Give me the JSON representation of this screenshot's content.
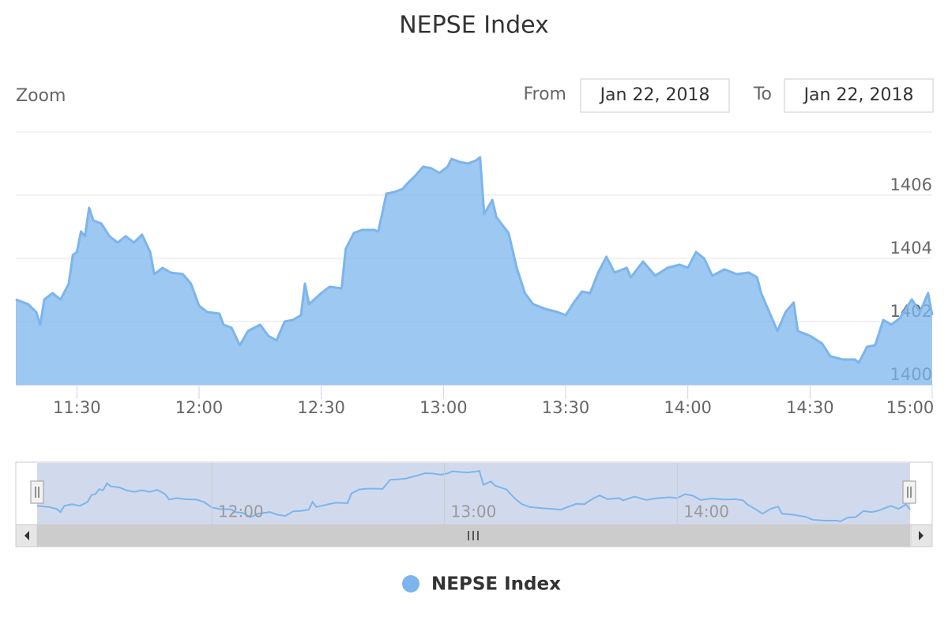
{
  "chart_data": {
    "type": "area",
    "title": "NEPSE Index",
    "range_selector": {
      "label": "Zoom",
      "from_label": "From",
      "from": "Jan 22, 2018",
      "to_label": "To",
      "to": "Jan 22, 2018"
    },
    "x": [
      "11:15",
      "11:18",
      "11:20",
      "11:21",
      "11:22",
      "11:24",
      "11:26",
      "11:28",
      "11:29",
      "11:30",
      "11:31",
      "11:32",
      "11:33",
      "11:34",
      "11:36",
      "11:38",
      "11:40",
      "11:42",
      "11:44",
      "11:46",
      "11:48",
      "11:49",
      "11:51",
      "11:53",
      "11:56",
      "11:58",
      "12:00",
      "12:02",
      "12:05",
      "12:06",
      "12:08",
      "12:10",
      "12:12",
      "12:15",
      "12:17",
      "12:19",
      "12:21",
      "12:23",
      "12:25",
      "12:26",
      "12:27",
      "12:30",
      "12:32",
      "12:35",
      "12:36",
      "12:38",
      "12:40",
      "12:43",
      "12:44",
      "12:46",
      "12:48",
      "12:50",
      "12:51",
      "12:53",
      "12:55",
      "12:57",
      "12:59",
      "13:01",
      "13:02",
      "13:04",
      "13:06",
      "13:08",
      "13:09",
      "13:10",
      "13:12",
      "13:13",
      "13:16",
      "13:18",
      "13:20",
      "13:22",
      "13:25",
      "13:28",
      "13:30",
      "13:32",
      "13:34",
      "13:36",
      "13:38",
      "13:40",
      "13:42",
      "13:45",
      "13:46",
      "13:49",
      "13:52",
      "13:55",
      "13:58",
      "14:00",
      "14:02",
      "14:04",
      "14:06",
      "14:09",
      "14:12",
      "14:15",
      "14:17",
      "14:18",
      "14:20",
      "14:22",
      "14:24",
      "14:26",
      "14:27",
      "14:30",
      "14:33",
      "14:35",
      "14:38",
      "14:41",
      "14:42",
      "14:44",
      "14:46",
      "14:48",
      "14:50",
      "14:52",
      "14:53",
      "14:55",
      "14:57",
      "14:59",
      "15:00"
    ],
    "series": [
      {
        "name": "NEPSE Index",
        "color": "#7cb5ec",
        "values": [
          1402.7,
          1402.55,
          1402.3,
          1401.9,
          1402.7,
          1402.9,
          1402.7,
          1403.2,
          1404.1,
          1404.2,
          1404.85,
          1404.7,
          1405.6,
          1405.2,
          1405.1,
          1404.7,
          1404.5,
          1404.7,
          1404.5,
          1404.75,
          1404.2,
          1403.5,
          1403.7,
          1403.55,
          1403.5,
          1403.2,
          1402.5,
          1402.3,
          1402.25,
          1401.9,
          1401.8,
          1401.25,
          1401.7,
          1401.9,
          1401.55,
          1401.4,
          1402.0,
          1402.05,
          1402.2,
          1403.2,
          1402.55,
          1402.9,
          1403.1,
          1403.05,
          1404.3,
          1404.8,
          1404.9,
          1404.9,
          1404.85,
          1406.05,
          1406.1,
          1406.2,
          1406.35,
          1406.6,
          1406.9,
          1406.85,
          1406.7,
          1406.9,
          1407.15,
          1407.05,
          1407.0,
          1407.1,
          1407.2,
          1405.4,
          1405.85,
          1405.3,
          1404.8,
          1403.7,
          1402.9,
          1402.55,
          1402.4,
          1402.3,
          1402.2,
          1402.6,
          1402.95,
          1402.9,
          1403.55,
          1404.05,
          1403.55,
          1403.7,
          1403.4,
          1403.9,
          1403.45,
          1403.7,
          1403.8,
          1403.7,
          1404.2,
          1404.0,
          1403.45,
          1403.65,
          1403.5,
          1403.55,
          1403.4,
          1402.9,
          1402.3,
          1401.7,
          1402.3,
          1402.6,
          1401.7,
          1401.55,
          1401.3,
          1400.9,
          1400.8,
          1400.8,
          1400.7,
          1401.2,
          1401.25,
          1402.05,
          1401.9,
          1402.1,
          1402.3,
          1402.7,
          1402.3,
          1402.9,
          1402.2
        ]
      }
    ],
    "xlim": [
      "11:15",
      "15:00"
    ],
    "xticks": [
      "11:30",
      "12:00",
      "12:30",
      "13:00",
      "13:30",
      "14:00",
      "14:30",
      "15:00"
    ],
    "ylim": [
      1400,
      1408
    ],
    "yticks": [
      1400,
      1402,
      1404,
      1406
    ],
    "grid": true,
    "navigator": {
      "xticks": [
        "12:00",
        "13:00",
        "14:00"
      ]
    }
  }
}
